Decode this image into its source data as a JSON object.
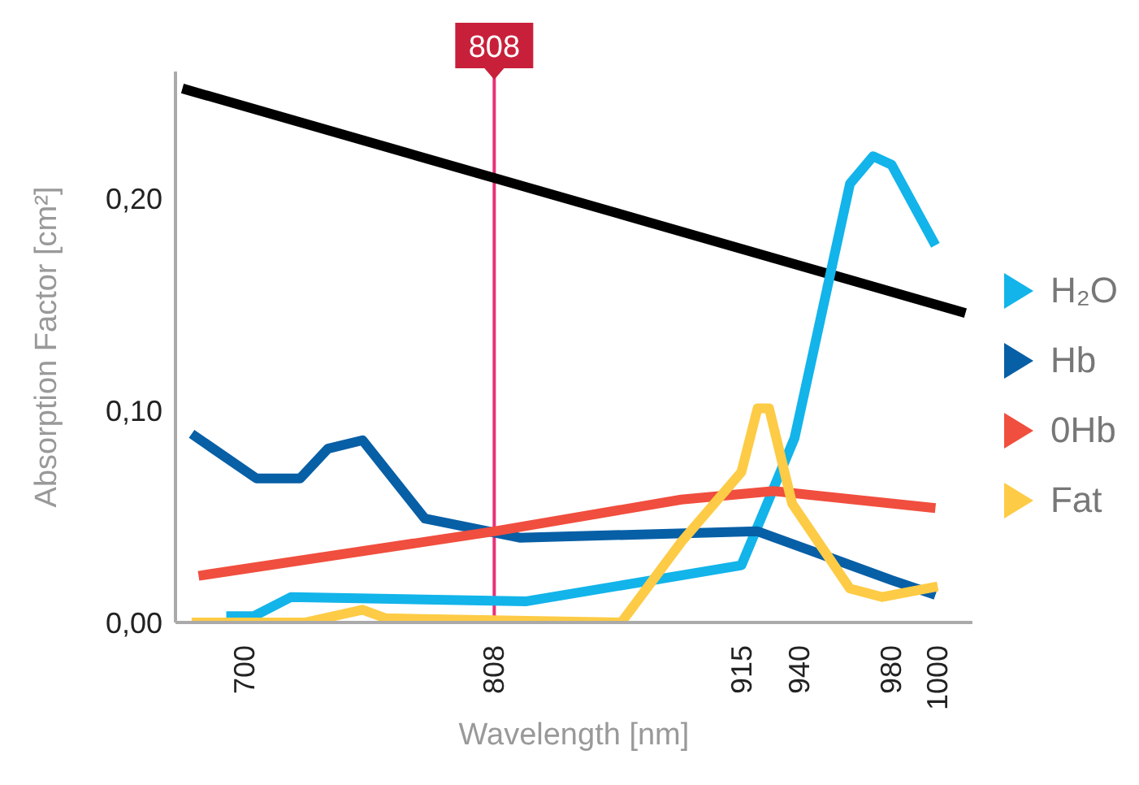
{
  "chart_data": {
    "type": "line",
    "xlabel": "Wavelength [nm]",
    "ylabel": "Absorption Factor [cm²]",
    "xlim": [
      670,
      1015
    ],
    "xticks": [
      700,
      808,
      915,
      940,
      980,
      1000
    ],
    "ylim": [
      0,
      0.26
    ],
    "yticks": [
      {
        "value": 0,
        "label": "0,00"
      },
      {
        "value": 0.1,
        "label": "0,10"
      },
      {
        "value": 0.2,
        "label": "0,20"
      }
    ],
    "grid": false,
    "legend": "right",
    "marker": "none",
    "line_style": "solid",
    "ref_lines": [
      {
        "axis": "x",
        "value": 808,
        "label": "808",
        "color": "#e8317a"
      }
    ],
    "series": [
      {
        "color": "#000000",
        "x": [
          673,
          1012
        ],
        "values": [
          0.252,
          0.146
        ]
      },
      {
        "name": "H₂O",
        "color": "#12b4ea",
        "x": [
          692,
          704,
          720,
          822,
          915,
          938,
          962,
          972,
          980,
          999
        ],
        "values": [
          0.003,
          0.003,
          0.012,
          0.01,
          0.027,
          0.087,
          0.207,
          0.22,
          0.216,
          0.178
        ]
      },
      {
        "name": "Hb",
        "color": "#075fa6",
        "x": [
          677,
          705,
          724,
          736,
          751,
          778,
          819,
          922,
          980,
          999
        ],
        "values": [
          0.089,
          0.068,
          0.068,
          0.082,
          0.086,
          0.049,
          0.04,
          0.043,
          0.02,
          0.013
        ]
      },
      {
        "name": "0Hb",
        "color": "#f04e3e",
        "x": [
          680,
          808,
          889,
          929,
          999
        ],
        "values": [
          0.022,
          0.043,
          0.058,
          0.062,
          0.054
        ]
      },
      {
        "name": "Fat",
        "color": "#fdcb45",
        "x": [
          677,
          726,
          751,
          761,
          863,
          889,
          915,
          922,
          927,
          937,
          962,
          976,
          1000
        ],
        "values": [
          0,
          0,
          0.006,
          0.002,
          0,
          0.038,
          0.071,
          0.101,
          0.101,
          0.056,
          0.016,
          0.012,
          0.017
        ]
      }
    ]
  }
}
